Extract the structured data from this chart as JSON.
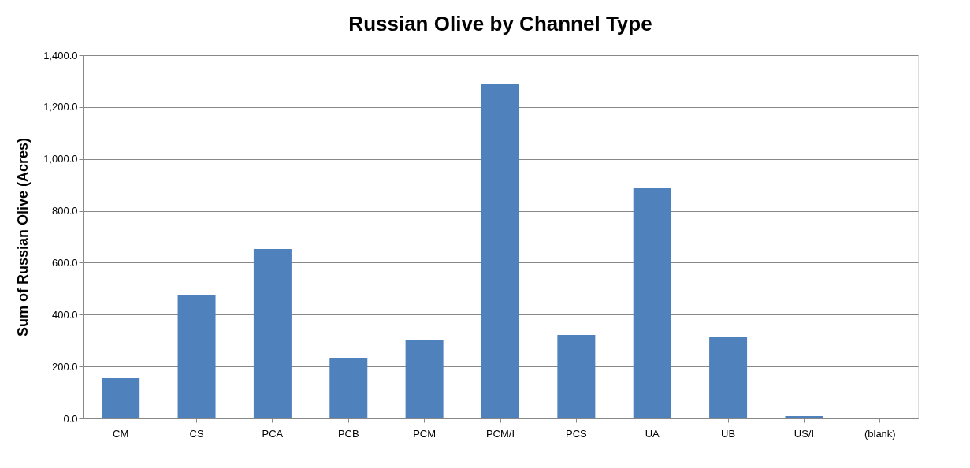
{
  "chart_data": {
    "type": "bar",
    "title": "Russian Olive by Channel Type",
    "ylabel": "Sum of Russian Olive (Acres)",
    "categories": [
      "CM",
      "CS",
      "PCA",
      "PCB",
      "PCM",
      "PCM/I",
      "PCS",
      "UA",
      "UB",
      "US/I",
      "(blank)"
    ],
    "values": [
      155,
      474,
      653,
      234,
      304,
      1288,
      322,
      887,
      313,
      9,
      null
    ],
    "color": "#4f81bd",
    "ylim": [
      0,
      1400
    ],
    "yticks": [
      {
        "value": 0,
        "label": "0.0"
      },
      {
        "value": 200,
        "label": "200.0"
      },
      {
        "value": 400,
        "label": "400.0"
      },
      {
        "value": 600,
        "label": "600.0"
      },
      {
        "value": 800,
        "label": "800.0"
      },
      {
        "value": 1000,
        "label": "1,000.0"
      },
      {
        "value": 1200,
        "label": "1,200.0"
      },
      {
        "value": 1400,
        "label": "1,400.0"
      }
    ],
    "grid": "y"
  }
}
